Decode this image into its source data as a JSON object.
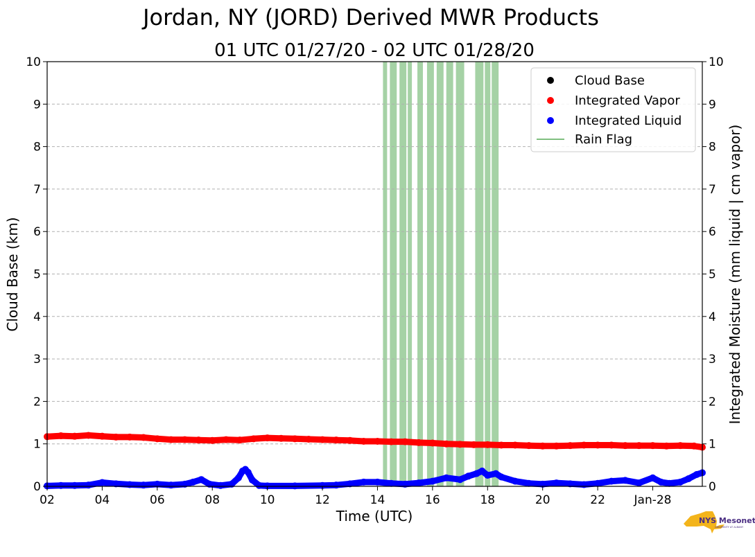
{
  "chart_data": {
    "type": "scatter",
    "title": "Jordan, NY (JORD) Derived MWR Products",
    "subtitle": "01 UTC 01/27/20 - 02 UTC 01/28/20",
    "xlabel": "Time (UTC)",
    "ylabel_left": "Cloud Base (km)",
    "ylabel_right": "Integrated Moisture (mm liquid | cm vapor)",
    "x_unit": "hours UTC since 01/27/20 00:00",
    "xlim": [
      2,
      25.8
    ],
    "ylim": [
      0,
      10
    ],
    "x_ticks": [
      {
        "value": 2,
        "label": "02"
      },
      {
        "value": 4,
        "label": "04"
      },
      {
        "value": 6,
        "label": "06"
      },
      {
        "value": 8,
        "label": "08"
      },
      {
        "value": 10,
        "label": "10"
      },
      {
        "value": 12,
        "label": "12"
      },
      {
        "value": 14,
        "label": "14"
      },
      {
        "value": 16,
        "label": "16"
      },
      {
        "value": 18,
        "label": "18"
      },
      {
        "value": 20,
        "label": "20"
      },
      {
        "value": 22,
        "label": "22"
      },
      {
        "value": 24,
        "label": "Jan-28"
      }
    ],
    "y_ticks": [
      "0",
      "1",
      "2",
      "3",
      "4",
      "5",
      "6",
      "7",
      "8",
      "9",
      "10"
    ],
    "grid": true,
    "legend_position": "top-right",
    "legend": [
      "Cloud Base",
      "Integrated Vapor",
      "Integrated Liquid",
      "Rain Flag"
    ],
    "colors": {
      "cloud_base": "#000000",
      "vapor": "#ff0000",
      "liquid": "#0000ff",
      "rain": "#7fbf7f",
      "grid": "#b0b0b0"
    },
    "rain_flag_intervals": [
      [
        14.2,
        14.35
      ],
      [
        14.45,
        14.7
      ],
      [
        14.8,
        15.05
      ],
      [
        15.1,
        15.25
      ],
      [
        15.45,
        15.65
      ],
      [
        15.8,
        16.05
      ],
      [
        16.15,
        16.4
      ],
      [
        16.5,
        16.75
      ],
      [
        16.85,
        17.15
      ],
      [
        17.55,
        17.85
      ],
      [
        17.9,
        18.1
      ],
      [
        18.15,
        18.4
      ]
    ],
    "series": [
      {
        "name": "Cloud Base",
        "x": [],
        "y": []
      },
      {
        "name": "Integrated Vapor",
        "x": [
          2,
          2.5,
          3,
          3.5,
          4,
          4.5,
          5,
          5.5,
          6,
          6.5,
          7,
          7.5,
          8,
          8.5,
          9,
          9.5,
          10,
          10.5,
          11,
          11.5,
          12,
          12.5,
          13,
          13.5,
          14,
          14.5,
          15,
          15.5,
          16,
          16.5,
          17,
          17.5,
          18,
          18.5,
          19,
          19.5,
          20,
          20.5,
          21,
          21.5,
          22,
          22.5,
          23,
          23.5,
          24,
          24.5,
          25,
          25.5,
          25.8
        ],
        "y": [
          1.17,
          1.19,
          1.18,
          1.2,
          1.18,
          1.16,
          1.16,
          1.15,
          1.12,
          1.1,
          1.1,
          1.09,
          1.08,
          1.1,
          1.09,
          1.12,
          1.14,
          1.13,
          1.12,
          1.11,
          1.1,
          1.09,
          1.08,
          1.06,
          1.06,
          1.05,
          1.05,
          1.03,
          1.02,
          1.0,
          0.99,
          0.98,
          0.98,
          0.97,
          0.97,
          0.96,
          0.95,
          0.95,
          0.96,
          0.97,
          0.97,
          0.97,
          0.96,
          0.96,
          0.96,
          0.95,
          0.96,
          0.95,
          0.92
        ]
      },
      {
        "name": "Integrated Liquid",
        "x": [
          2,
          2.5,
          3,
          3.5,
          4,
          4.5,
          5,
          5.5,
          6,
          6.5,
          7,
          7.3,
          7.6,
          7.9,
          8.3,
          8.7,
          8.95,
          9.1,
          9.2,
          9.3,
          9.45,
          9.7,
          10,
          11,
          12,
          12.5,
          13,
          13.5,
          14,
          14.5,
          15,
          15.5,
          16,
          16.5,
          17,
          17.3,
          17.6,
          17.8,
          18,
          18.3,
          18.5,
          19,
          19.5,
          20,
          20.5,
          21,
          21.5,
          22,
          22.5,
          23,
          23.5,
          24,
          24.3,
          24.6,
          25,
          25.3,
          25.6,
          25.8
        ],
        "y": [
          0.01,
          0.02,
          0.02,
          0.03,
          0.09,
          0.06,
          0.04,
          0.03,
          0.05,
          0.03,
          0.05,
          0.1,
          0.16,
          0.05,
          0.02,
          0.05,
          0.2,
          0.36,
          0.4,
          0.33,
          0.15,
          0.02,
          0.01,
          0.01,
          0.02,
          0.03,
          0.06,
          0.1,
          0.1,
          0.07,
          0.05,
          0.08,
          0.12,
          0.2,
          0.16,
          0.24,
          0.3,
          0.36,
          0.26,
          0.3,
          0.22,
          0.12,
          0.07,
          0.05,
          0.08,
          0.06,
          0.04,
          0.07,
          0.12,
          0.14,
          0.08,
          0.2,
          0.1,
          0.07,
          0.1,
          0.18,
          0.28,
          0.32
        ]
      }
    ]
  },
  "logo": {
    "text": "NYS Mesonet",
    "subtext": "UNIVERSITY AT ALBANY"
  }
}
